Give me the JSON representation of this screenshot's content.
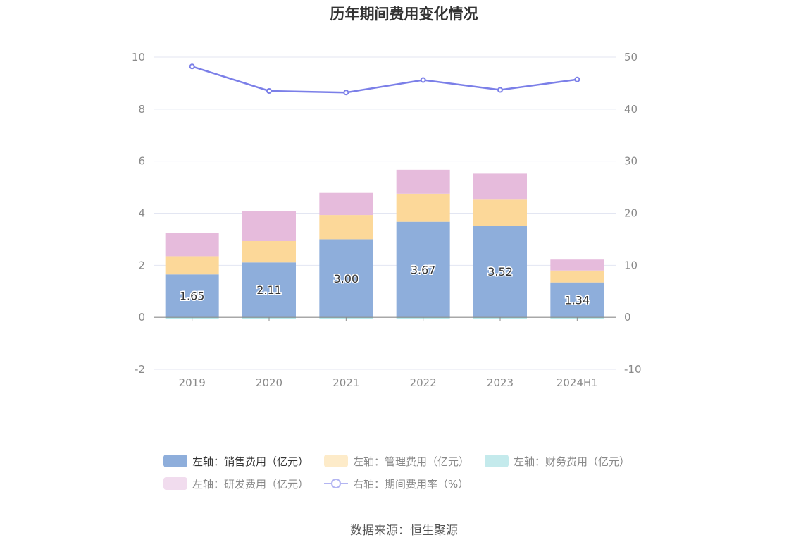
{
  "chart_data": {
    "type": "bar",
    "title": "历年期间费用变化情况",
    "categories": [
      "2019",
      "2020",
      "2021",
      "2022",
      "2023",
      "2024H1"
    ],
    "stacked": true,
    "series": [
      {
        "name": "左轴：销售费用（亿元）",
        "axis": "left",
        "color": "#8eaedb",
        "values": [
          1.65,
          2.11,
          3.0,
          3.67,
          3.52,
          1.34
        ],
        "labels": [
          "1.65",
          "2.11",
          "3.00",
          "3.67",
          "3.52",
          "1.34"
        ]
      },
      {
        "name": "左轴：管理费用（亿元）",
        "axis": "left",
        "color": "#fcd899",
        "values": [
          0.7,
          0.82,
          0.93,
          1.08,
          1.0,
          0.46
        ]
      },
      {
        "name": "左轴：财务费用（亿元）",
        "axis": "left",
        "color": "#95dde0",
        "values": [
          -0.03,
          -0.02,
          -0.01,
          -0.02,
          -0.02,
          -0.01
        ]
      },
      {
        "name": "左轴：研发费用（亿元）",
        "axis": "left",
        "color": "#e6bbdc",
        "values": [
          0.9,
          1.14,
          0.85,
          0.92,
          1.0,
          0.42
        ]
      },
      {
        "name": "右轴：期间费用率（%）",
        "axis": "right",
        "type": "line",
        "color": "#7b7fe8",
        "values": [
          48.2,
          43.5,
          43.2,
          45.6,
          43.7,
          45.7
        ]
      }
    ],
    "left_axis": {
      "min": -2,
      "max": 10,
      "ticks": [
        "-2",
        "0",
        "2",
        "4",
        "6",
        "8",
        "10"
      ]
    },
    "right_axis": {
      "min": -10,
      "max": 50,
      "ticks": [
        "-10",
        "0",
        "10",
        "20",
        "30",
        "40",
        "50"
      ]
    },
    "legend_placement": "bottom",
    "grid": true
  },
  "legend": {
    "items": [
      {
        "label": "左轴：销售费用（亿元）",
        "color": "#8eaedb",
        "kind": "bar"
      },
      {
        "label": "左轴：管理费用（亿元）",
        "color": "#fdebc9",
        "kind": "bar"
      },
      {
        "label": "左轴：财务费用（亿元）",
        "color": "#c4eaec",
        "kind": "bar"
      },
      {
        "label": "左轴：研发费用（亿元）",
        "color": "#f1dcee",
        "kind": "bar"
      },
      {
        "label": "右轴：期间费用率（%）",
        "color": "#b3b5f2",
        "kind": "line"
      }
    ]
  },
  "source": "数据来源：恒生聚源"
}
